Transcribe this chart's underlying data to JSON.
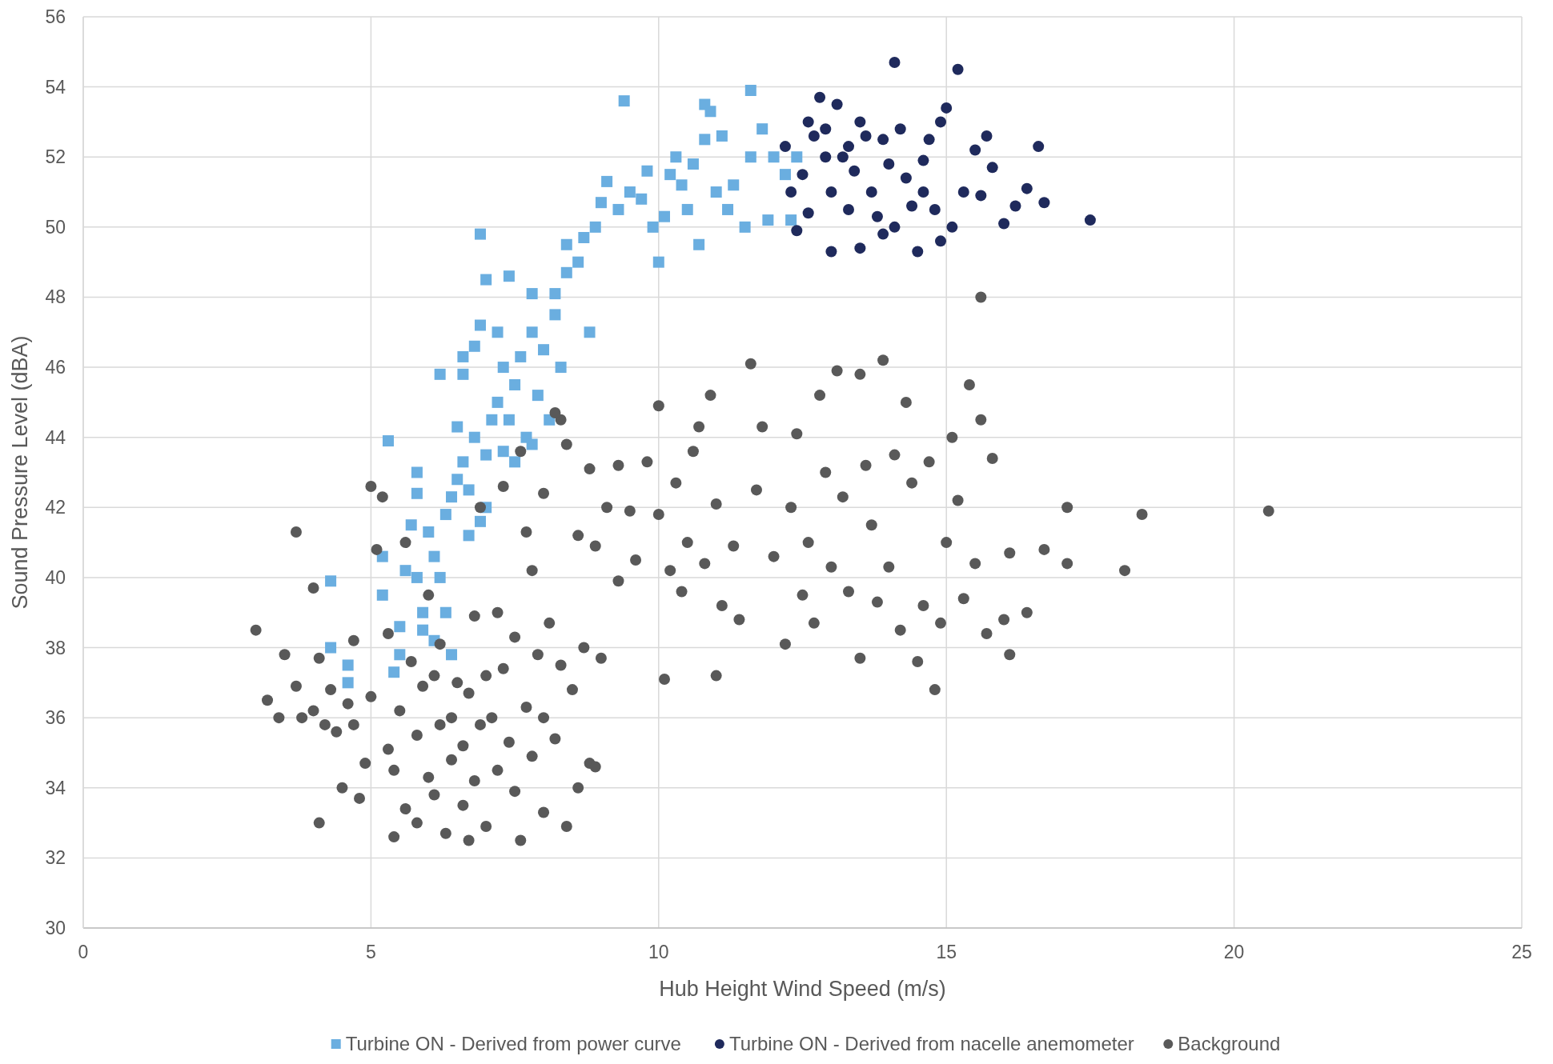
{
  "chart_data": {
    "type": "scatter",
    "xlabel": "Hub Height Wind Speed (m/s)",
    "ylabel": "Sound Pressure Level (dBA)",
    "xlim": [
      0,
      25
    ],
    "xticks": [
      0,
      5,
      10,
      15,
      20,
      25
    ],
    "ylim": [
      30,
      56
    ],
    "yticks": [
      30,
      32,
      34,
      36,
      38,
      40,
      42,
      44,
      46,
      48,
      50,
      52,
      54,
      56
    ],
    "grid": true,
    "legend": "bottom",
    "series": [
      {
        "name": "Turbine ON - Derived from power curve",
        "color": "#6aaee0",
        "marker": "square",
        "x": [
          4.3,
          4.3,
          4.6,
          4.6,
          5.2,
          5.4,
          5.5,
          5.3,
          5.8,
          5.8,
          5.7,
          5.6,
          5.9,
          5.5,
          6.0,
          6.1,
          6.2,
          6.3,
          6.4,
          6.5,
          6.6,
          6.5,
          6.6,
          6.8,
          6.9,
          6.7,
          7.0,
          7.1,
          7.2,
          7.3,
          7.3,
          7.4,
          7.5,
          7.6,
          7.7,
          7.8,
          7.9,
          8.0,
          8.1,
          8.2,
          8.3,
          7.8,
          8.2,
          7.0,
          6.9,
          6.8,
          6.6,
          6.2,
          6.9,
          7.2,
          7.4,
          8.4,
          8.4,
          8.6,
          8.7,
          8.9,
          9.0,
          9.1,
          9.3,
          9.4,
          9.5,
          9.7,
          9.8,
          10.0,
          10.1,
          10.2,
          10.3,
          10.5,
          10.6,
          10.7,
          10.8,
          10.8,
          10.9,
          11.0,
          11.1,
          11.2,
          11.3,
          11.5,
          11.6,
          11.6,
          11.8,
          11.9,
          12.0,
          12.2,
          12.3,
          12.4,
          10.4,
          9.9,
          8.8,
          6.3,
          6.1,
          5.9,
          6.4,
          5.2,
          5.8,
          6.7,
          7.0,
          7.5,
          7.8
        ],
        "values": [
          39.9,
          38.0,
          37.0,
          37.5,
          39.5,
          37.3,
          37.8,
          43.9,
          43.0,
          42.4,
          41.5,
          40.2,
          39.0,
          38.6,
          41.3,
          40.6,
          40.0,
          41.8,
          42.3,
          42.8,
          43.3,
          44.3,
          45.8,
          44.0,
          41.6,
          41.2,
          43.5,
          44.5,
          45.0,
          43.6,
          46.0,
          44.5,
          45.5,
          46.3,
          44.0,
          47.0,
          45.2,
          46.5,
          44.5,
          47.5,
          46.0,
          48.1,
          48.1,
          48.5,
          49.8,
          46.6,
          46.3,
          45.8,
          47.2,
          47.0,
          48.6,
          48.7,
          49.5,
          49.0,
          49.7,
          50.0,
          50.7,
          51.3,
          50.5,
          53.6,
          51.0,
          50.8,
          51.6,
          49.0,
          50.3,
          51.5,
          52.0,
          50.5,
          51.8,
          49.5,
          52.5,
          53.5,
          53.3,
          51.0,
          52.6,
          50.5,
          51.2,
          50.0,
          52.0,
          53.9,
          52.8,
          50.2,
          52.0,
          51.5,
          50.2,
          52.0,
          51.2,
          50.0,
          47.0,
          39.0,
          38.2,
          38.5,
          37.8,
          40.6,
          40.0,
          42.5,
          42.0,
          43.3,
          43.8
        ]
      },
      {
        "name": "Turbine ON - Derived from nacelle anemometer",
        "color": "#1f2a5c",
        "marker": "circle",
        "x": [
          12.2,
          12.4,
          12.5,
          12.6,
          12.7,
          12.8,
          12.9,
          13.0,
          13.0,
          13.1,
          13.2,
          13.3,
          13.4,
          13.5,
          13.6,
          13.7,
          13.8,
          13.9,
          14.0,
          14.1,
          14.1,
          14.2,
          14.3,
          14.4,
          14.5,
          14.6,
          14.7,
          14.8,
          14.9,
          14.9,
          15.0,
          15.1,
          15.2,
          15.3,
          15.5,
          15.6,
          15.7,
          15.8,
          16.0,
          16.2,
          16.4,
          16.6,
          16.7,
          17.5,
          12.3,
          12.6,
          13.3,
          13.9,
          14.6,
          12.9,
          13.5
        ],
        "values": [
          52.3,
          49.9,
          51.5,
          53.0,
          52.6,
          53.7,
          52.0,
          49.3,
          51.0,
          53.5,
          52.0,
          50.5,
          51.6,
          49.4,
          52.6,
          51.0,
          50.3,
          52.5,
          51.8,
          54.7,
          50.0,
          52.8,
          51.4,
          50.6,
          49.3,
          51.9,
          52.5,
          50.5,
          53.0,
          49.6,
          53.4,
          50.0,
          54.5,
          51.0,
          52.2,
          50.9,
          52.6,
          51.7,
          50.1,
          50.6,
          51.1,
          52.3,
          50.7,
          50.2,
          51.0,
          50.4,
          52.3,
          49.8,
          51.0,
          52.8,
          53.0
        ]
      },
      {
        "name": "Background",
        "color": "#595959",
        "marker": "circle",
        "x": [
          3.0,
          3.2,
          3.4,
          3.5,
          3.7,
          3.7,
          3.8,
          4.0,
          4.0,
          4.1,
          4.1,
          4.2,
          4.3,
          4.4,
          4.5,
          4.6,
          4.7,
          4.7,
          4.8,
          4.9,
          5.0,
          5.0,
          5.1,
          5.2,
          5.3,
          5.3,
          5.4,
          5.4,
          5.5,
          5.6,
          5.6,
          5.7,
          5.8,
          5.8,
          5.9,
          6.0,
          6.0,
          6.1,
          6.1,
          6.2,
          6.2,
          6.3,
          6.4,
          6.4,
          6.5,
          6.6,
          6.6,
          6.7,
          6.7,
          6.8,
          6.8,
          6.9,
          7.0,
          7.0,
          7.1,
          7.2,
          7.2,
          7.3,
          7.4,
          7.5,
          7.5,
          7.6,
          7.7,
          7.8,
          7.8,
          7.9,
          8.0,
          8.0,
          8.1,
          8.2,
          8.3,
          8.3,
          8.4,
          8.5,
          8.6,
          8.7,
          8.8,
          8.9,
          7.3,
          6.9,
          7.6,
          8.2,
          8.4,
          8.0,
          7.7,
          8.6,
          8.8,
          8.9,
          9.0,
          9.1,
          9.3,
          9.3,
          9.5,
          9.6,
          9.8,
          10.0,
          10.0,
          10.1,
          10.2,
          10.3,
          10.4,
          10.5,
          10.6,
          10.7,
          10.8,
          10.9,
          11.0,
          11.0,
          11.1,
          11.3,
          11.4,
          11.6,
          11.7,
          11.8,
          12.0,
          12.2,
          12.3,
          12.4,
          12.5,
          12.6,
          12.7,
          12.8,
          12.9,
          13.0,
          13.1,
          13.2,
          13.3,
          13.5,
          13.5,
          13.6,
          13.7,
          13.8,
          13.9,
          14.0,
          14.1,
          14.2,
          14.3,
          14.4,
          14.5,
          14.6,
          14.7,
          14.8,
          14.9,
          15.0,
          15.1,
          15.2,
          15.3,
          15.4,
          15.5,
          15.6,
          15.6,
          15.7,
          15.8,
          16.0,
          16.1,
          16.1,
          16.4,
          16.7,
          17.1,
          17.1,
          18.1,
          18.4,
          20.6
        ],
        "values": [
          38.5,
          36.5,
          36.0,
          37.8,
          41.3,
          36.9,
          36.0,
          39.7,
          36.2,
          37.7,
          33.0,
          35.8,
          36.8,
          35.6,
          34.0,
          36.4,
          38.2,
          35.8,
          33.7,
          34.7,
          36.6,
          42.6,
          40.8,
          42.3,
          38.4,
          35.1,
          32.6,
          34.5,
          36.2,
          41.0,
          33.4,
          37.6,
          35.5,
          33.0,
          36.9,
          34.3,
          39.5,
          37.2,
          33.8,
          35.8,
          38.1,
          32.7,
          36.0,
          34.8,
          37.0,
          35.2,
          33.5,
          36.7,
          32.5,
          38.9,
          34.2,
          35.8,
          37.2,
          32.9,
          36.0,
          34.5,
          39.0,
          37.4,
          35.3,
          33.9,
          38.3,
          32.5,
          36.3,
          40.2,
          34.9,
          37.8,
          36.0,
          33.3,
          38.7,
          35.4,
          44.5,
          37.5,
          32.9,
          36.8,
          34.0,
          38.0,
          34.7,
          34.6,
          42.6,
          42.0,
          43.6,
          44.7,
          43.8,
          42.4,
          41.3,
          41.2,
          43.1,
          40.9,
          37.7,
          42.0,
          39.9,
          43.2,
          41.9,
          40.5,
          43.3,
          44.9,
          41.8,
          37.1,
          40.2,
          42.7,
          39.6,
          41.0,
          43.6,
          44.3,
          40.4,
          45.2,
          37.2,
          42.1,
          39.2,
          40.9,
          38.8,
          46.1,
          42.5,
          44.3,
          40.6,
          38.1,
          42.0,
          44.1,
          39.5,
          41.0,
          38.7,
          45.2,
          43.0,
          40.3,
          45.9,
          42.3,
          39.6,
          37.7,
          45.8,
          43.2,
          41.5,
          39.3,
          46.2,
          40.3,
          43.5,
          38.5,
          45.0,
          42.7,
          37.6,
          39.2,
          43.3,
          36.8,
          38.7,
          41.0,
          44.0,
          42.2,
          39.4,
          45.5,
          40.4,
          44.5,
          48.0,
          38.4,
          43.4,
          38.8,
          37.8,
          40.7,
          39.0,
          40.8,
          42.0,
          40.4,
          40.2,
          41.8,
          41.9
        ]
      }
    ]
  }
}
